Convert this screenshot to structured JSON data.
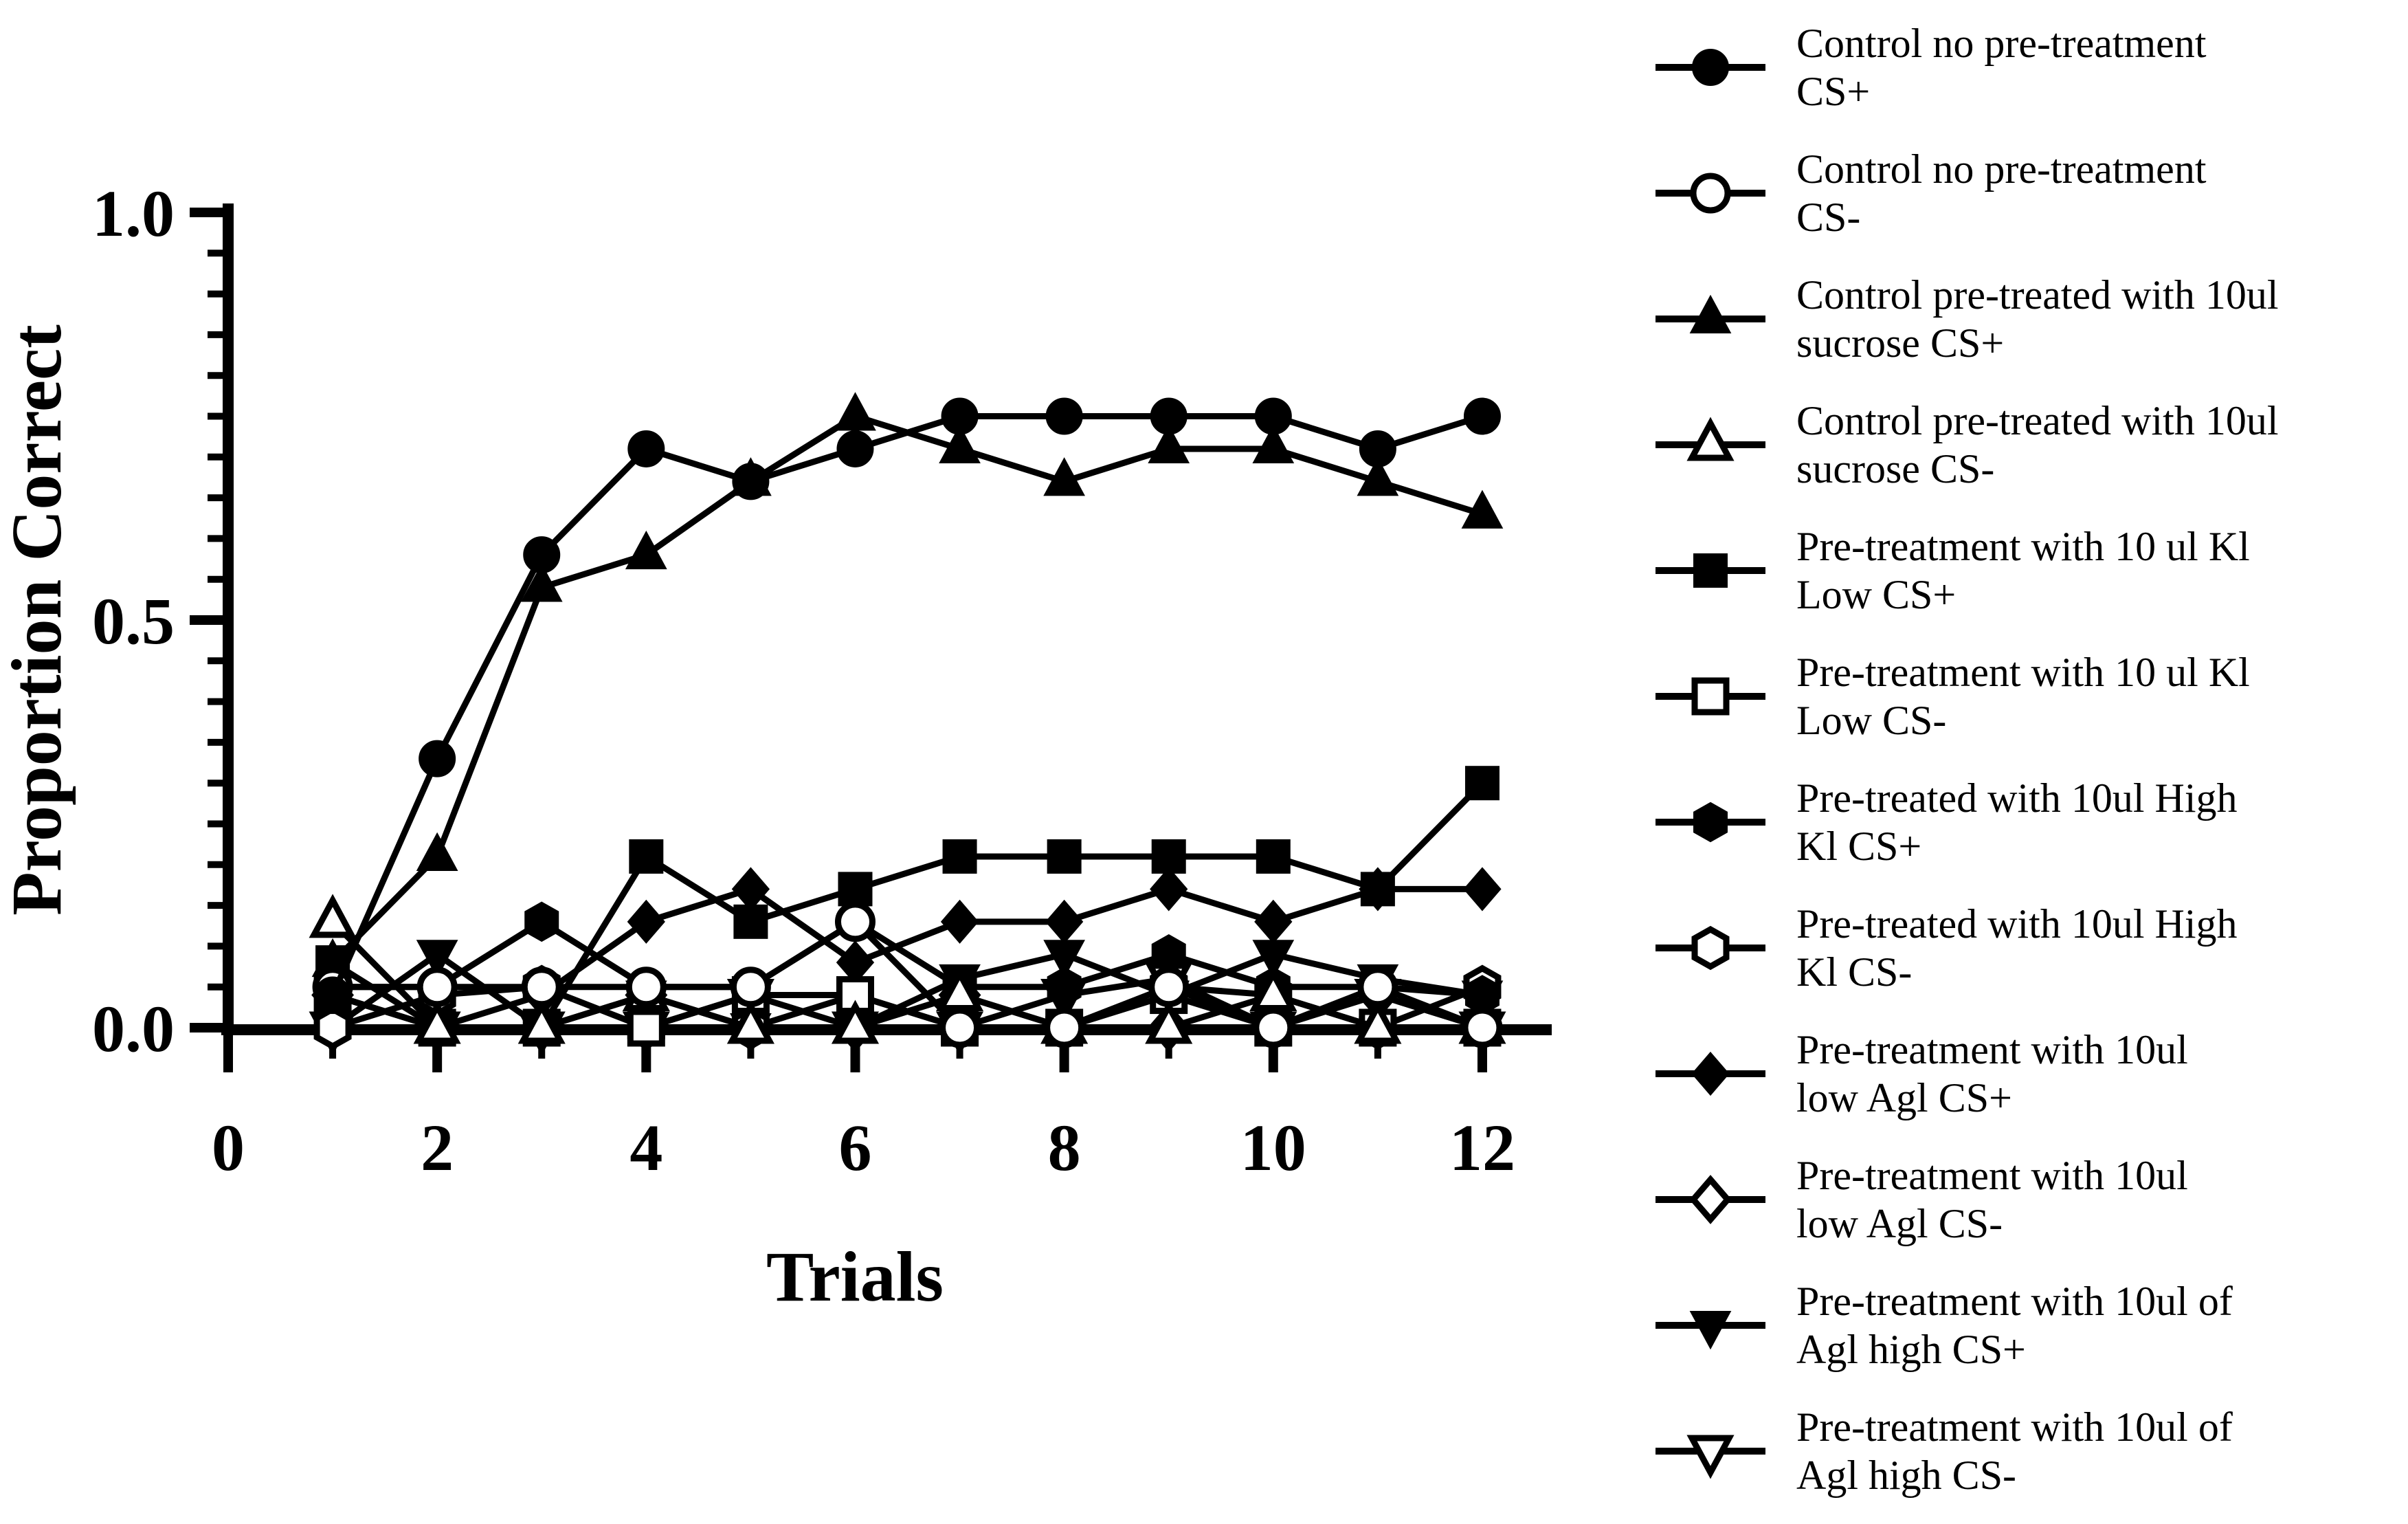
{
  "figure": {
    "background": "#ffffff",
    "ink_color": "#000000"
  },
  "chart_data": {
    "type": "line",
    "title": "",
    "xlabel": "Trials",
    "ylabel": "Proportion Correct",
    "xlim": [
      0,
      12.6
    ],
    "ylim": [
      0.0,
      1.0
    ],
    "grid": false,
    "legend_position": "right",
    "x_tick_labels": [
      "0",
      "2",
      "4",
      "6",
      "8",
      "10",
      "12"
    ],
    "x_ticks_major": [
      0,
      2,
      4,
      6,
      8,
      10,
      12
    ],
    "x_ticks_minor": [
      1,
      3,
      5,
      7,
      9,
      11
    ],
    "y_tick_labels": [
      "0.0",
      "0.5",
      "1.0"
    ],
    "y_ticks_major": [
      0.0,
      0.5,
      1.0
    ],
    "y_minor_step": 0.05,
    "x": [
      1,
      2,
      3,
      4,
      5,
      6,
      7,
      8,
      9,
      10,
      11,
      12
    ],
    "series": [
      {
        "name": "Control no pre-treatment CS+",
        "label_lines": [
          "Control no pre-treatment",
          "CS+"
        ],
        "marker": "circle",
        "variant": "filled",
        "values": [
          0.04,
          0.33,
          0.58,
          0.71,
          0.67,
          0.71,
          0.75,
          0.75,
          0.75,
          0.75,
          0.71,
          0.75
        ]
      },
      {
        "name": "Control no pre-treatment CS-",
        "label_lines": [
          "Control no pre-treatment",
          "CS-"
        ],
        "marker": "circle",
        "variant": "open",
        "values": [
          0.05,
          0.05,
          0.05,
          0.05,
          0.05,
          0.13,
          0.0,
          0.0,
          0.05,
          0.0,
          0.05,
          0.0
        ]
      },
      {
        "name": "Control pre-treated with 10ul sucrose CS+",
        "label_lines": [
          "Control pre-treated with 10ul",
          "sucrose CS+"
        ],
        "marker": "triangle-up",
        "variant": "filled",
        "values": [
          0.08,
          0.21,
          0.54,
          0.58,
          0.67,
          0.75,
          0.71,
          0.67,
          0.71,
          0.71,
          0.67,
          0.63
        ]
      },
      {
        "name": "Control pre-treated with 10ul sucrose CS-",
        "label_lines": [
          "Control pre-treated with 10ul",
          "sucrose CS-"
        ],
        "marker": "triangle-up",
        "variant": "open",
        "values": [
          0.13,
          0.0,
          0.0,
          0.04,
          0.0,
          0.0,
          0.04,
          0.0,
          0.0,
          0.04,
          0.0,
          0.0
        ]
      },
      {
        "name": "Pre-treatment with 10 ul Kl Low CS+",
        "label_lines": [
          "Pre-treatment with 10 ul Kl",
          "Low CS+"
        ],
        "marker": "square",
        "variant": "filled",
        "values": [
          0.08,
          0.0,
          0.0,
          0.21,
          0.13,
          0.17,
          0.21,
          0.21,
          0.21,
          0.21,
          0.17,
          0.3
        ]
      },
      {
        "name": "Pre-treatment with 10 ul Kl Low CS-",
        "label_lines": [
          "Pre-treatment with 10 ul Kl",
          "Low CS-"
        ],
        "marker": "square",
        "variant": "open",
        "values": [
          0.04,
          0.0,
          0.0,
          0.0,
          0.04,
          0.04,
          0.0,
          0.0,
          0.04,
          0.0,
          0.0,
          0.0
        ]
      },
      {
        "name": "Pre-treated with 10ul High Kl CS+",
        "label_lines": [
          "Pre-treated with 10ul High",
          "Kl CS+"
        ],
        "marker": "hexagon",
        "variant": "filled",
        "values": [
          0.05,
          0.05,
          0.13,
          0.05,
          0.05,
          0.13,
          0.05,
          0.05,
          0.09,
          0.05,
          0.05,
          0.04
        ]
      },
      {
        "name": "Pre-treated with 10ul High Kl CS-",
        "label_lines": [
          "Pre-treated with 10ul High",
          "Kl CS-"
        ],
        "marker": "hexagon",
        "variant": "open",
        "values": [
          0.0,
          0.04,
          0.05,
          0.0,
          0.0,
          0.04,
          0.0,
          0.0,
          0.05,
          0.04,
          0.0,
          0.05
        ]
      },
      {
        "name": "Pre-treatment with 10ul low Agl CS+",
        "label_lines": [
          "Pre-treatment with 10ul",
          "low Agl CS+"
        ],
        "marker": "diamond",
        "variant": "filled",
        "values": [
          0.0,
          0.0,
          0.04,
          0.13,
          0.17,
          0.08,
          0.13,
          0.13,
          0.17,
          0.13,
          0.17,
          0.17
        ]
      },
      {
        "name": "Pre-treatment with 10ul low Agl CS-",
        "label_lines": [
          "Pre-treatment with 10ul",
          "low Agl CS-"
        ],
        "marker": "diamond",
        "variant": "open",
        "values": [
          0.04,
          0.0,
          0.0,
          0.04,
          0.0,
          0.0,
          0.04,
          0.0,
          0.0,
          0.0,
          0.04,
          0.0
        ]
      },
      {
        "name": "Pre-treatment with 10ul of Agl high CS+",
        "label_lines": [
          "Pre-treatment with 10ul of",
          "Agl high CS+"
        ],
        "marker": "triangle-down",
        "variant": "filled",
        "values": [
          0.0,
          0.09,
          0.0,
          0.04,
          0.0,
          0.0,
          0.06,
          0.09,
          0.04,
          0.09,
          0.06,
          0.04
        ]
      },
      {
        "name": "Pre-treatment with 10ul of Agl high CS-",
        "label_lines": [
          "Pre-treatment with 10ul of",
          "Agl high CS-"
        ],
        "marker": "triangle-down",
        "variant": "open",
        "values": [
          0.0,
          0.0,
          0.0,
          0.0,
          0.04,
          0.0,
          0.0,
          0.04,
          0.06,
          0.0,
          0.04,
          0.0
        ]
      }
    ]
  }
}
